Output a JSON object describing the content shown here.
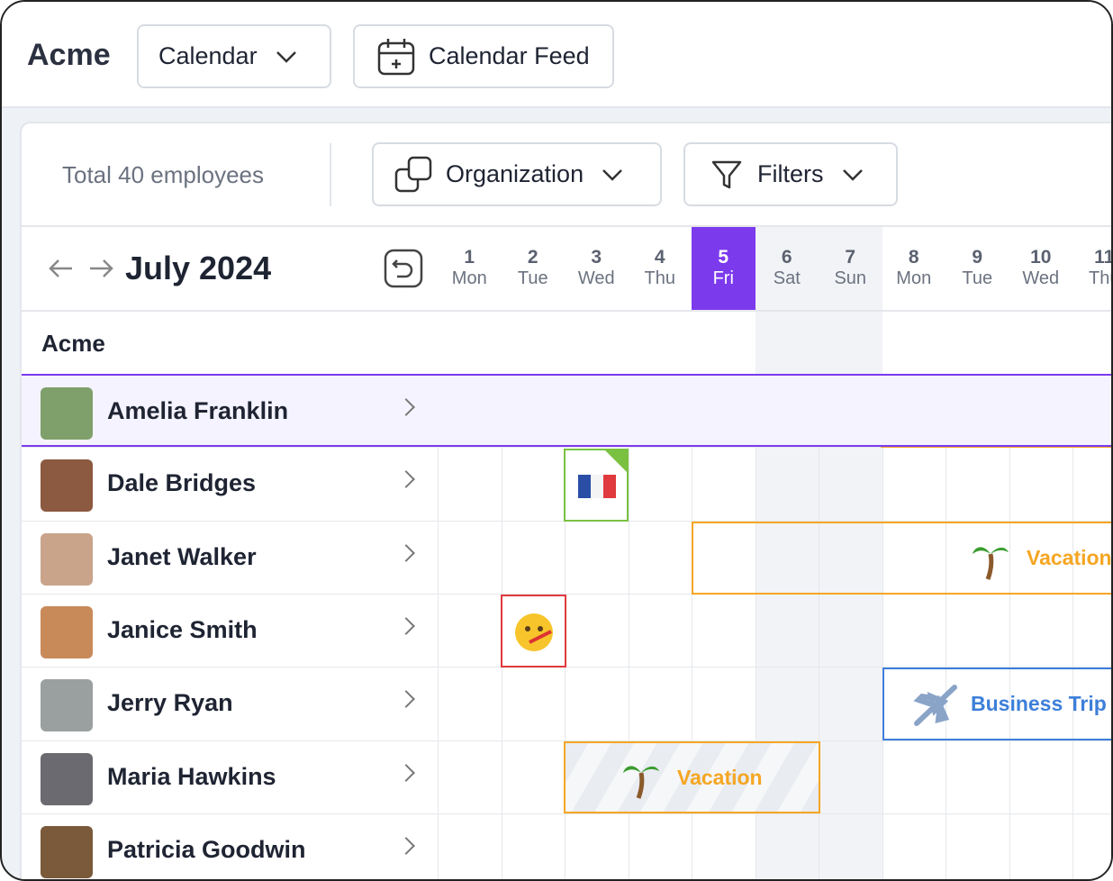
{
  "header": {
    "brand": "Acme",
    "calendar_button": "Calendar",
    "feed_button": "Calendar Feed"
  },
  "toolbar": {
    "total": "Total 40 employees",
    "organization": "Organization",
    "filters": "Filters"
  },
  "calendar": {
    "month": "July 2024",
    "days": [
      {
        "date": 1,
        "weekday": "Mon"
      },
      {
        "date": 2,
        "weekday": "Tue"
      },
      {
        "date": 3,
        "weekday": "Wed"
      },
      {
        "date": 4,
        "weekday": "Thu"
      },
      {
        "date": 5,
        "weekday": "Fri"
      },
      {
        "date": 6,
        "weekday": "Sat"
      },
      {
        "date": 7,
        "weekday": "Sun"
      },
      {
        "date": 8,
        "weekday": "Mon"
      },
      {
        "date": 9,
        "weekday": "Tue"
      },
      {
        "date": 10,
        "weekday": "Wed"
      },
      {
        "date": 11,
        "weekday": "Thu"
      }
    ],
    "group": "Acme",
    "employees": [
      "Amelia Franklin",
      "Dale Bridges",
      "Janet Walker",
      "Janice Smith",
      "Jerry Ryan",
      "Maria Hawkins",
      "Patricia Goodwin"
    ],
    "events": [
      {
        "label": "Vacation"
      },
      {
        "label": "Business Trip"
      },
      {
        "label": "Vacation"
      }
    ]
  }
}
